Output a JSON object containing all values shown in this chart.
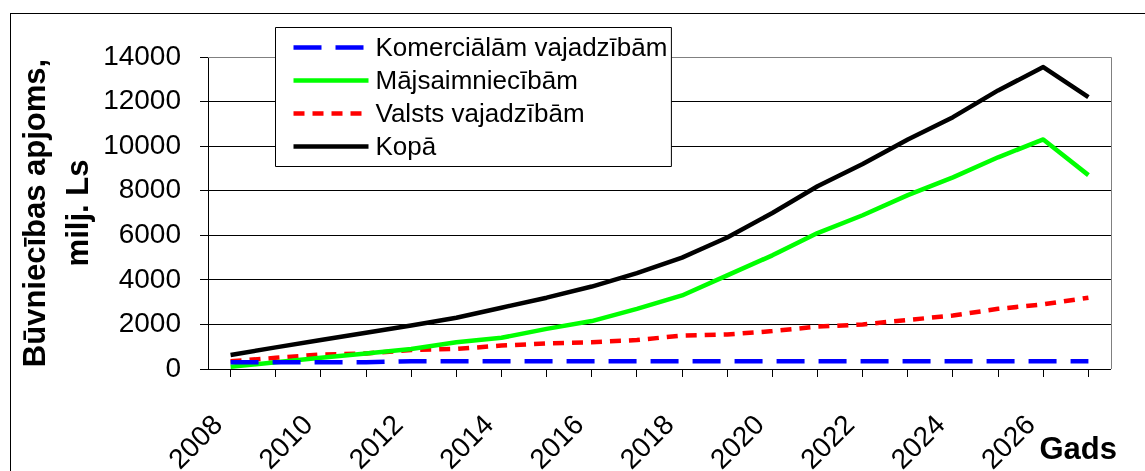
{
  "chart_data": {
    "type": "line",
    "xlabel": "Gads",
    "ylabel": "Būvniecības apjoms, milj. Ls",
    "categories": [
      "2008",
      null,
      "2010",
      null,
      "2012",
      null,
      "2014",
      null,
      "2016",
      null,
      "2018",
      null,
      "2020",
      null,
      "2022",
      null,
      "2024",
      null,
      "2026",
      null
    ],
    "series": [
      {
        "name": "Komerciālām vajadzībām",
        "color": "#0000ff",
        "line_style": "dashed",
        "values": [
          300,
          300,
          300,
          300,
          350,
          350,
          350,
          350,
          350,
          350,
          350,
          350,
          350,
          350,
          350,
          350,
          350,
          350,
          350,
          350
        ]
      },
      {
        "name": "Mājsaimniecībām",
        "color": "#00ff00",
        "values": [
          100,
          300,
          500,
          700,
          900,
          1200,
          1400,
          1800,
          2150,
          2700,
          3300,
          4200,
          5100,
          6100,
          6900,
          7800,
          8600,
          9500,
          10300,
          8700
        ]
      },
      {
        "name": "Valsts vajadzībām",
        "color": "#ff0000",
        "line_style": "dotted",
        "values": [
          350,
          500,
          650,
          700,
          850,
          900,
          1050,
          1150,
          1200,
          1300,
          1500,
          1550,
          1700,
          1900,
          2000,
          2200,
          2400,
          2700,
          2900,
          3200
        ]
      },
      {
        "name": "Kopā",
        "color": "#000000",
        "values": [
          630,
          970,
          1300,
          1630,
          1950,
          2300,
          2750,
          3200,
          3700,
          4300,
          5000,
          5900,
          7000,
          8200,
          9200,
          10300,
          11300,
          12500,
          13550,
          12200
        ]
      }
    ],
    "ylim": [
      0,
      14000
    ],
    "yticks": [
      0,
      2000,
      4000,
      6000,
      8000,
      10000,
      12000,
      14000
    ],
    "grid": "y",
    "legend": "top left"
  }
}
